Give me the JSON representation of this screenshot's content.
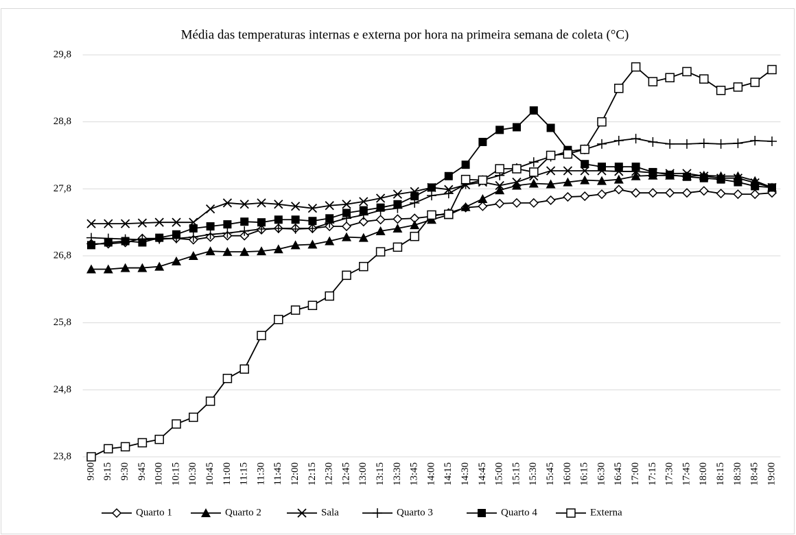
{
  "chart_data": {
    "type": "line",
    "title": "Média das temperaturas internas e externa por hora na primeira semana de coleta (°C)",
    "categories": [
      "9:00",
      "9:15",
      "9:30",
      "9:45",
      "10:00",
      "10:15",
      "10:30",
      "10:45",
      "11:00",
      "11:15",
      "11:30",
      "11:45",
      "12:00",
      "12:15",
      "12:30",
      "12:45",
      "13:00",
      "13:15",
      "13:30",
      "13:45",
      "14:00",
      "14:15",
      "14:30",
      "14:45",
      "15:00",
      "15:15",
      "15:30",
      "15:45",
      "16:00",
      "16:15",
      "16:30",
      "16:45",
      "17:00",
      "17:15",
      "17:30",
      "17:45",
      "18:00",
      "18:15",
      "18:30",
      "18:45",
      "19:00"
    ],
    "ylim": [
      23.8,
      29.8
    ],
    "yticks": [
      {
        "value": 23.8,
        "label": "23,8"
      },
      {
        "value": 24.8,
        "label": "24,8"
      },
      {
        "value": 25.8,
        "label": "25,8"
      },
      {
        "value": 26.8,
        "label": "26,8"
      },
      {
        "value": 27.8,
        "label": "27,8"
      },
      {
        "value": 28.8,
        "label": "28,8"
      },
      {
        "value": 29.8,
        "label": "29,8"
      }
    ],
    "grid": true,
    "legend": "bottom",
    "series": [
      {
        "name": "Quarto 1",
        "color": "#000000",
        "marker": "diamond",
        "values": [
          26.98,
          26.98,
          27.0,
          27.06,
          27.06,
          27.06,
          27.04,
          27.08,
          27.1,
          27.1,
          27.19,
          27.21,
          27.21,
          27.21,
          27.24,
          27.24,
          27.31,
          27.34,
          27.35,
          27.36,
          27.39,
          27.44,
          27.52,
          27.54,
          27.58,
          27.59,
          27.59,
          27.63,
          27.68,
          27.69,
          27.72,
          27.79,
          27.74,
          27.74,
          27.74,
          27.74,
          27.77,
          27.73,
          27.72,
          27.72,
          27.74
        ]
      },
      {
        "name": "Quarto 2",
        "color": "#000000",
        "marker": "triangle",
        "values": [
          26.6,
          26.6,
          26.62,
          26.62,
          26.64,
          26.72,
          26.8,
          26.87,
          26.86,
          26.86,
          26.87,
          26.9,
          26.96,
          26.97,
          27.02,
          27.08,
          27.07,
          27.17,
          27.21,
          27.26,
          27.34,
          27.41,
          27.53,
          27.65,
          27.78,
          27.85,
          27.88,
          27.87,
          27.9,
          27.93,
          27.92,
          27.94,
          27.99,
          28.0,
          28.0,
          27.99,
          28.0,
          27.99,
          27.99,
          27.92,
          27.82
        ]
      },
      {
        "name": "Sala",
        "color": "#000000",
        "marker": "x",
        "values": [
          27.28,
          27.28,
          27.28,
          27.29,
          27.3,
          27.3,
          27.3,
          27.5,
          27.59,
          27.57,
          27.59,
          27.57,
          27.54,
          27.51,
          27.55,
          27.57,
          27.61,
          27.66,
          27.72,
          27.76,
          27.82,
          27.79,
          27.86,
          27.9,
          27.85,
          27.9,
          27.99,
          28.07,
          28.07,
          28.07,
          28.07,
          28.06,
          28.06,
          28.04,
          28.03,
          28.03,
          27.99,
          27.96,
          27.96,
          27.89,
          27.82
        ]
      },
      {
        "name": "Quarto 3",
        "color": "#000000",
        "marker": "plus",
        "values": [
          27.07,
          27.06,
          27.05,
          27.04,
          27.05,
          27.06,
          27.08,
          27.12,
          27.14,
          27.17,
          27.2,
          27.21,
          27.2,
          27.21,
          27.29,
          27.36,
          27.41,
          27.48,
          27.51,
          27.59,
          27.7,
          27.73,
          27.87,
          27.93,
          28.0,
          28.11,
          28.2,
          28.28,
          28.36,
          28.39,
          28.47,
          28.52,
          28.55,
          28.5,
          28.47,
          28.47,
          28.48,
          28.47,
          28.48,
          28.52,
          28.51
        ]
      },
      {
        "name": "Quarto 4",
        "color": "#000000",
        "marker": "square-filled",
        "values": [
          26.96,
          27.0,
          27.02,
          27.0,
          27.07,
          27.12,
          27.21,
          27.24,
          27.27,
          27.31,
          27.3,
          27.34,
          27.34,
          27.32,
          27.36,
          27.44,
          27.48,
          27.52,
          27.57,
          27.69,
          27.82,
          27.99,
          28.16,
          28.5,
          28.68,
          28.72,
          28.97,
          28.71,
          28.38,
          28.17,
          28.13,
          28.13,
          28.13,
          28.05,
          28.01,
          27.98,
          27.96,
          27.94,
          27.9,
          27.84,
          27.82
        ]
      },
      {
        "name": "Externa",
        "color": "#000000",
        "marker": "square-open",
        "values": [
          23.8,
          23.92,
          23.95,
          24.01,
          24.06,
          24.29,
          24.39,
          24.63,
          24.97,
          25.11,
          25.61,
          25.85,
          25.99,
          26.06,
          26.2,
          26.51,
          26.64,
          26.86,
          26.93,
          27.09,
          27.41,
          27.42,
          27.94,
          27.93,
          28.1,
          28.1,
          28.05,
          28.3,
          28.32,
          28.39,
          28.8,
          29.3,
          29.62,
          29.4,
          29.46,
          29.55,
          29.44,
          29.27,
          29.32,
          29.39,
          29.58
        ]
      }
    ]
  }
}
